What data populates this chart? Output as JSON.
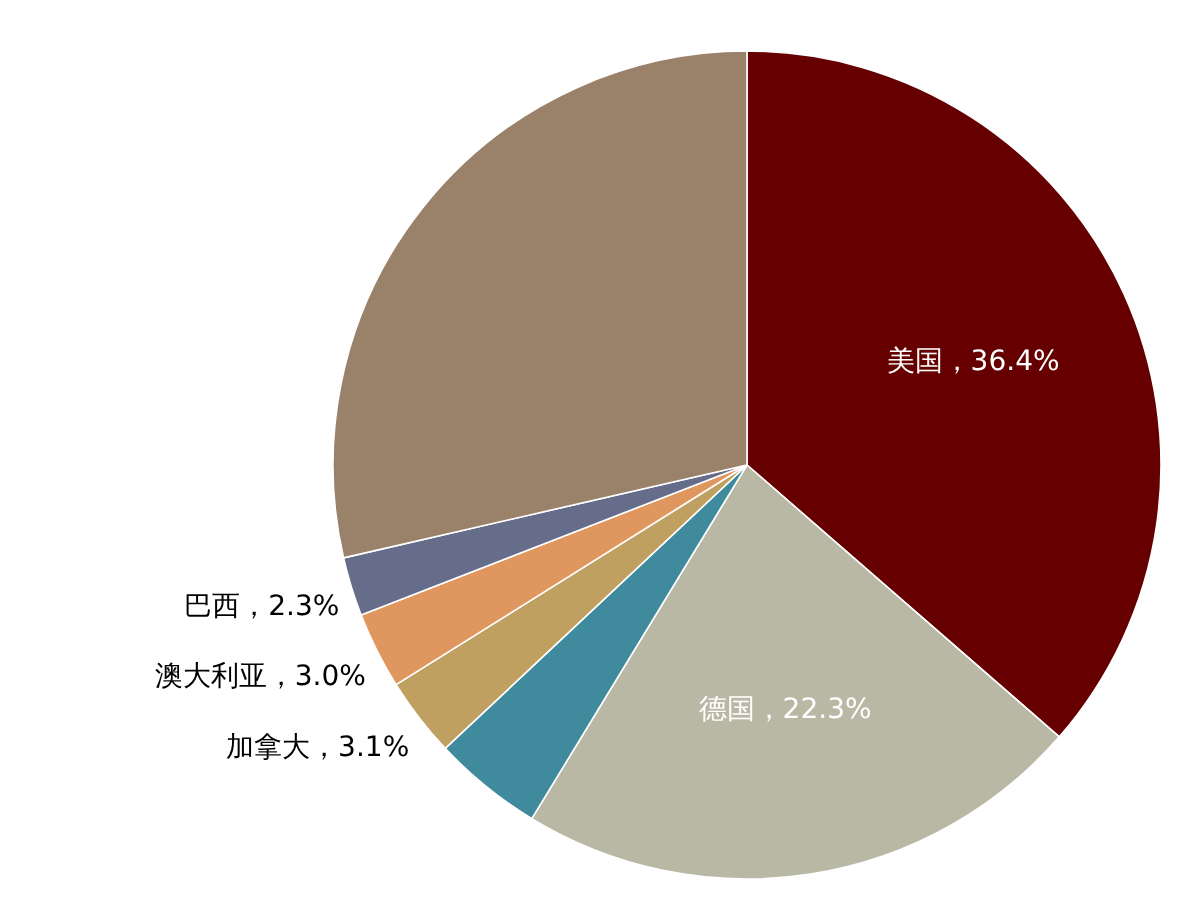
{
  "chart_data": {
    "type": "pie",
    "categories": [
      "美国",
      "德国",
      null,
      "加拿大",
      "澳大利亚",
      "巴西",
      null
    ],
    "values": [
      36.4,
      22.3,
      4.3,
      3.1,
      3.0,
      2.3,
      28.6
    ],
    "colors": [
      "#660000",
      "#b9b8a5",
      "#3f8a9c",
      "#bfa060",
      "#e0975f",
      "#656d8a",
      "#9a826a"
    ],
    "value_labels": [
      "36.4%",
      "22.3%",
      null,
      "3.1%",
      "3.0%",
      "2.3%",
      null
    ]
  }
}
